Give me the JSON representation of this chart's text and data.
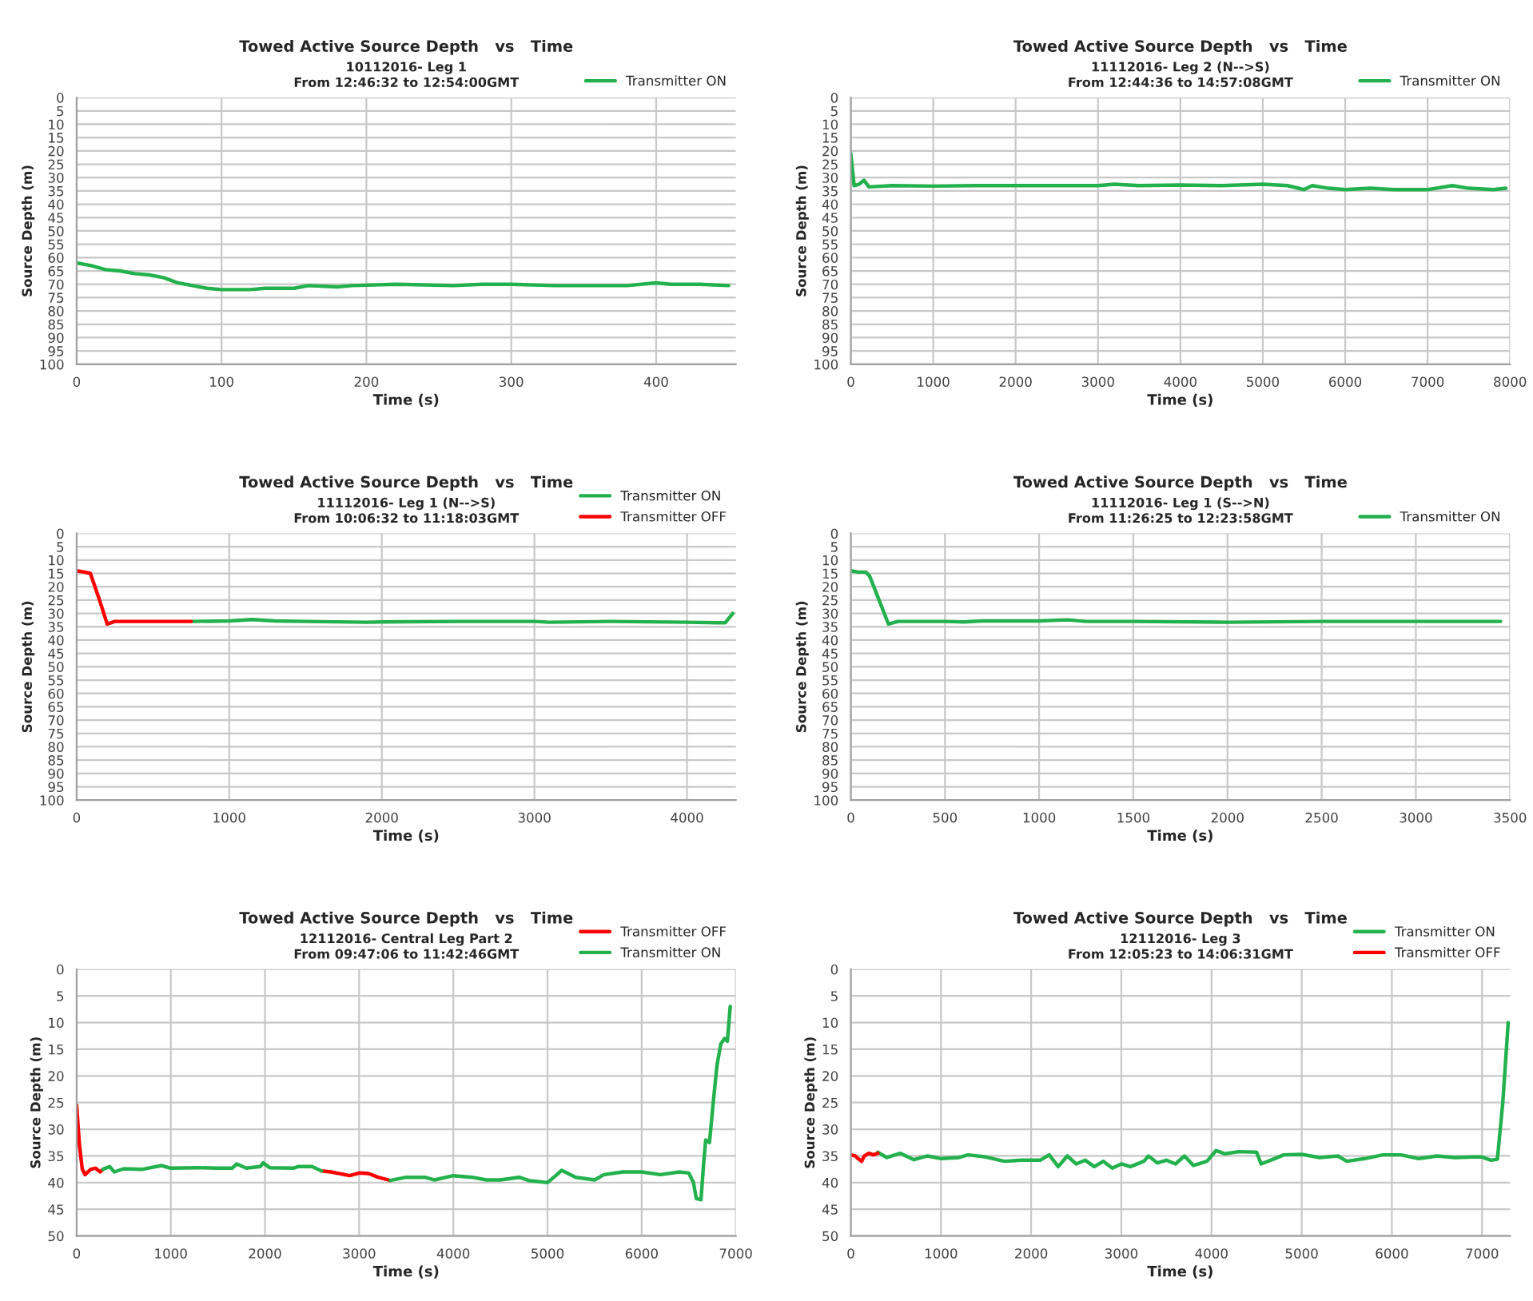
{
  "chart_data": [
    {
      "type": "line",
      "title": "Towed Active Source Depth   vs   Time",
      "subtitle": "10112016- Leg 1\nFrom 12:46:32 to 12:54:00GMT",
      "xlabel": "Time (s)",
      "ylabel": "Source Depth (m)",
      "xlim": [
        0,
        455
      ],
      "xticks": [
        0,
        100,
        200,
        300,
        400
      ],
      "ylim": [
        100,
        0
      ],
      "yticks": [
        0,
        5,
        10,
        15,
        20,
        25,
        30,
        35,
        40,
        45,
        50,
        55,
        60,
        65,
        70,
        75,
        80,
        85,
        90,
        95,
        100
      ],
      "grid": true,
      "legend": "top right",
      "series": [
        {
          "name": "Transmitter ON",
          "color": "#22b14c",
          "x": [
            0,
            10,
            20,
            30,
            40,
            50,
            60,
            70,
            80,
            90,
            100,
            120,
            130,
            150,
            160,
            180,
            190,
            220,
            260,
            280,
            300,
            330,
            350,
            380,
            400,
            410,
            430,
            450
          ],
          "values": [
            62,
            63,
            64.5,
            65,
            66,
            66.5,
            67.5,
            69.5,
            70.5,
            71.5,
            72,
            72,
            71.5,
            71.5,
            70.5,
            71,
            70.5,
            70,
            70.5,
            70,
            70,
            70.5,
            70.5,
            70.5,
            69.5,
            70,
            70,
            70.5
          ]
        }
      ]
    },
    {
      "type": "line",
      "title": "Towed Active Source Depth   vs   Time",
      "subtitle": "11112016- Leg 2 (N-->S)\nFrom 12:44:36 to 14:57:08GMT",
      "xlabel": "Time (s)",
      "ylabel": "Source Depth (m)",
      "xlim": [
        0,
        8000
      ],
      "xticks": [
        0,
        1000,
        2000,
        3000,
        4000,
        5000,
        6000,
        7000,
        8000
      ],
      "ylim": [
        100,
        0
      ],
      "yticks": [
        0,
        5,
        10,
        15,
        20,
        25,
        30,
        35,
        40,
        45,
        50,
        55,
        60,
        65,
        70,
        75,
        80,
        85,
        90,
        95,
        100
      ],
      "grid": true,
      "legend": "top right",
      "series": [
        {
          "name": "Transmitter ON",
          "color": "#22b14c",
          "x": [
            0,
            40,
            100,
            160,
            220,
            500,
            1000,
            1500,
            2000,
            2500,
            3000,
            3200,
            3500,
            4000,
            4500,
            5000,
            5300,
            5500,
            5600,
            5800,
            6000,
            6300,
            6600,
            7000,
            7100,
            7300,
            7500,
            7800,
            7950
          ],
          "values": [
            21,
            33,
            32.5,
            31,
            33.5,
            33,
            33.2,
            33,
            33,
            33,
            33,
            32.5,
            33,
            32.8,
            33,
            32.5,
            33,
            34.5,
            33,
            34,
            34.5,
            34,
            34.5,
            34.5,
            34,
            33,
            34,
            34.5,
            34
          ]
        }
      ]
    },
    {
      "type": "line",
      "title": "Towed Active Source Depth   vs   Time",
      "subtitle": "11112016- Leg 1 (N-->S)\nFrom 10:06:32 to 11:18:03GMT",
      "xlabel": "Time (s)",
      "ylabel": "Source Depth (m)",
      "xlim": [
        0,
        4320
      ],
      "xticks": [
        0,
        1000,
        2000,
        3000,
        4000
      ],
      "ylim": [
        100,
        0
      ],
      "yticks": [
        0,
        5,
        10,
        15,
        20,
        25,
        30,
        35,
        40,
        45,
        50,
        55,
        60,
        65,
        70,
        75,
        80,
        85,
        90,
        95,
        100
      ],
      "grid": true,
      "legend": "top right",
      "series": [
        {
          "name": "Transmitter ON",
          "color": "#22b14c",
          "x": [
            750,
            1000,
            1150,
            1300,
            1500,
            1900,
            2000,
            2500,
            3000,
            3100,
            3500,
            4000,
            4200,
            4250,
            4300
          ],
          "values": [
            33,
            32.8,
            32.3,
            32.8,
            33,
            33.3,
            33.2,
            33,
            33,
            33.3,
            33,
            33.3,
            33.5,
            33.5,
            30
          ]
        },
        {
          "name": "Transmitter OFF",
          "color": "#ff0000",
          "x": [
            0,
            50,
            90,
            150,
            200,
            250,
            400,
            600,
            750
          ],
          "values": [
            14,
            14.5,
            15,
            25,
            34,
            33,
            33,
            33,
            33
          ]
        }
      ]
    },
    {
      "type": "line",
      "title": "Towed Active Source Depth   vs   Time",
      "subtitle": "11112016- Leg 1 (S-->N)\nFrom 11:26:25 to 12:23:58GMT",
      "xlabel": "Time (s)",
      "ylabel": "Source Depth (m)",
      "xlim": [
        0,
        3500
      ],
      "xticks": [
        0,
        500,
        1000,
        1500,
        2000,
        2500,
        3000,
        3500
      ],
      "ylim": [
        100,
        0
      ],
      "yticks": [
        0,
        5,
        10,
        15,
        20,
        25,
        30,
        35,
        40,
        45,
        50,
        55,
        60,
        65,
        70,
        75,
        80,
        85,
        90,
        95,
        100
      ],
      "grid": true,
      "legend": "top right",
      "series": [
        {
          "name": "Transmitter ON",
          "color": "#22b14c",
          "x": [
            0,
            40,
            80,
            100,
            150,
            200,
            250,
            500,
            600,
            700,
            1000,
            1150,
            1250,
            1500,
            2000,
            2500,
            3000,
            3200,
            3450
          ],
          "values": [
            14,
            14.5,
            14.5,
            16,
            25,
            34,
            33,
            33,
            33.2,
            32.8,
            32.8,
            32.4,
            33,
            33,
            33.3,
            33,
            33,
            33,
            33
          ]
        }
      ]
    },
    {
      "type": "line",
      "title": "Towed Active Source Depth   vs   Time",
      "subtitle": "12112016- Central Leg Part 2\nFrom 09:47:06 to 11:42:46GMT",
      "xlabel": "Time (s)",
      "ylabel": "Source Depth (m)",
      "xlim": [
        0,
        7000
      ],
      "xticks": [
        0,
        1000,
        2000,
        3000,
        4000,
        5000,
        6000,
        7000
      ],
      "ylim": [
        50,
        0
      ],
      "yticks": [
        0,
        5,
        10,
        15,
        20,
        25,
        30,
        35,
        40,
        45,
        50
      ],
      "grid": true,
      "legend": "top right",
      "series": [
        {
          "name": "Transmitter OFF",
          "color": "#ff0000",
          "x": [
            0,
            30,
            60,
            90,
            150,
            200,
            250,
            280,
            1500,
            2600,
            2700,
            2900,
            3000,
            3100,
            3200,
            3330
          ],
          "values": [
            25.5,
            33,
            37.5,
            38.5,
            37.5,
            37.3,
            38,
            37.5,
            null,
            37.8,
            38,
            38.7,
            38.2,
            38.3,
            39,
            39.6
          ]
        },
        {
          "name": "Transmitter ON",
          "color": "#22b14c",
          "x": [
            280,
            350,
            400,
            500,
            700,
            900,
            1000,
            1300,
            1500,
            1650,
            1700,
            1800,
            1950,
            1980,
            2050,
            2300,
            2350,
            2500,
            2600,
            2900,
            3330,
            3500,
            3700,
            3800,
            4000,
            4200,
            4350,
            4500,
            4700,
            4800,
            5000,
            5100,
            5150,
            5300,
            5500,
            5600,
            5800,
            6000,
            6200,
            6400,
            6500,
            6550,
            6580,
            6630,
            6660,
            6680,
            6720,
            6760,
            6800,
            6840,
            6880,
            6910,
            6940
          ],
          "values": [
            37.5,
            37,
            38,
            37.4,
            37.5,
            36.8,
            37.3,
            37.2,
            37.3,
            37.3,
            36.5,
            37.3,
            37,
            36.3,
            37.2,
            37.3,
            37,
            37,
            37.8,
            null,
            39.6,
            39,
            39,
            39.5,
            38.7,
            39,
            39.5,
            39.5,
            39,
            39.6,
            40,
            38.5,
            37.7,
            39,
            39.5,
            38.5,
            38,
            38,
            38.5,
            38,
            38.2,
            40,
            43,
            43.2,
            36,
            32,
            32.5,
            25,
            18,
            14,
            13,
            13.5,
            7
          ]
        }
      ]
    },
    {
      "type": "line",
      "title": "Towed Active Source Depth   vs   Time",
      "subtitle": "12112016- Leg 3\nFrom 12:05:23 to 14:06:31GMT",
      "xlabel": "Time (s)",
      "ylabel": "Source Depth (m)",
      "xlim": [
        0,
        7310
      ],
      "xticks": [
        0,
        1000,
        2000,
        3000,
        4000,
        5000,
        6000,
        7000
      ],
      "ylim": [
        50,
        0
      ],
      "yticks": [
        0,
        5,
        10,
        15,
        20,
        25,
        30,
        35,
        40,
        45,
        50
      ],
      "grid": true,
      "legend": "top right",
      "series": [
        {
          "name": "Transmitter ON",
          "color": "#22b14c",
          "x": [
            300,
            400,
            550,
            700,
            850,
            1000,
            1200,
            1300,
            1500,
            1700,
            1900,
            2100,
            2200,
            2300,
            2400,
            2500,
            2600,
            2700,
            2800,
            2900,
            3000,
            3100,
            3250,
            3300,
            3400,
            3500,
            3600,
            3700,
            3800,
            3950,
            4050,
            4150,
            4300,
            4500,
            4550,
            4700,
            4800,
            5000,
            5200,
            5400,
            5500,
            5700,
            5900,
            6100,
            6300,
            6500,
            6700,
            6900,
            7000,
            7100,
            7170,
            7230,
            7290
          ],
          "values": [
            34.3,
            35.3,
            34.5,
            35.7,
            35,
            35.5,
            35.3,
            34.8,
            35.2,
            36,
            35.8,
            35.8,
            34.8,
            37,
            35,
            36.5,
            35.8,
            37,
            36,
            37.3,
            36.5,
            37,
            36,
            35,
            36.3,
            35.8,
            36.5,
            35,
            36.8,
            36,
            34,
            34.6,
            34.2,
            34.3,
            36.5,
            35.5,
            34.8,
            34.7,
            35.3,
            35,
            36,
            35.5,
            34.8,
            34.8,
            35.5,
            35,
            35.3,
            35.2,
            35.2,
            35.8,
            35.6,
            25,
            10
          ]
        },
        {
          "name": "Transmitter OFF",
          "color": "#ff0000",
          "x": [
            0,
            50,
            80,
            120,
            150,
            200,
            250,
            300
          ],
          "values": [
            34.8,
            35,
            35.5,
            36,
            35,
            34.5,
            34.8,
            34.5
          ]
        }
      ]
    }
  ]
}
